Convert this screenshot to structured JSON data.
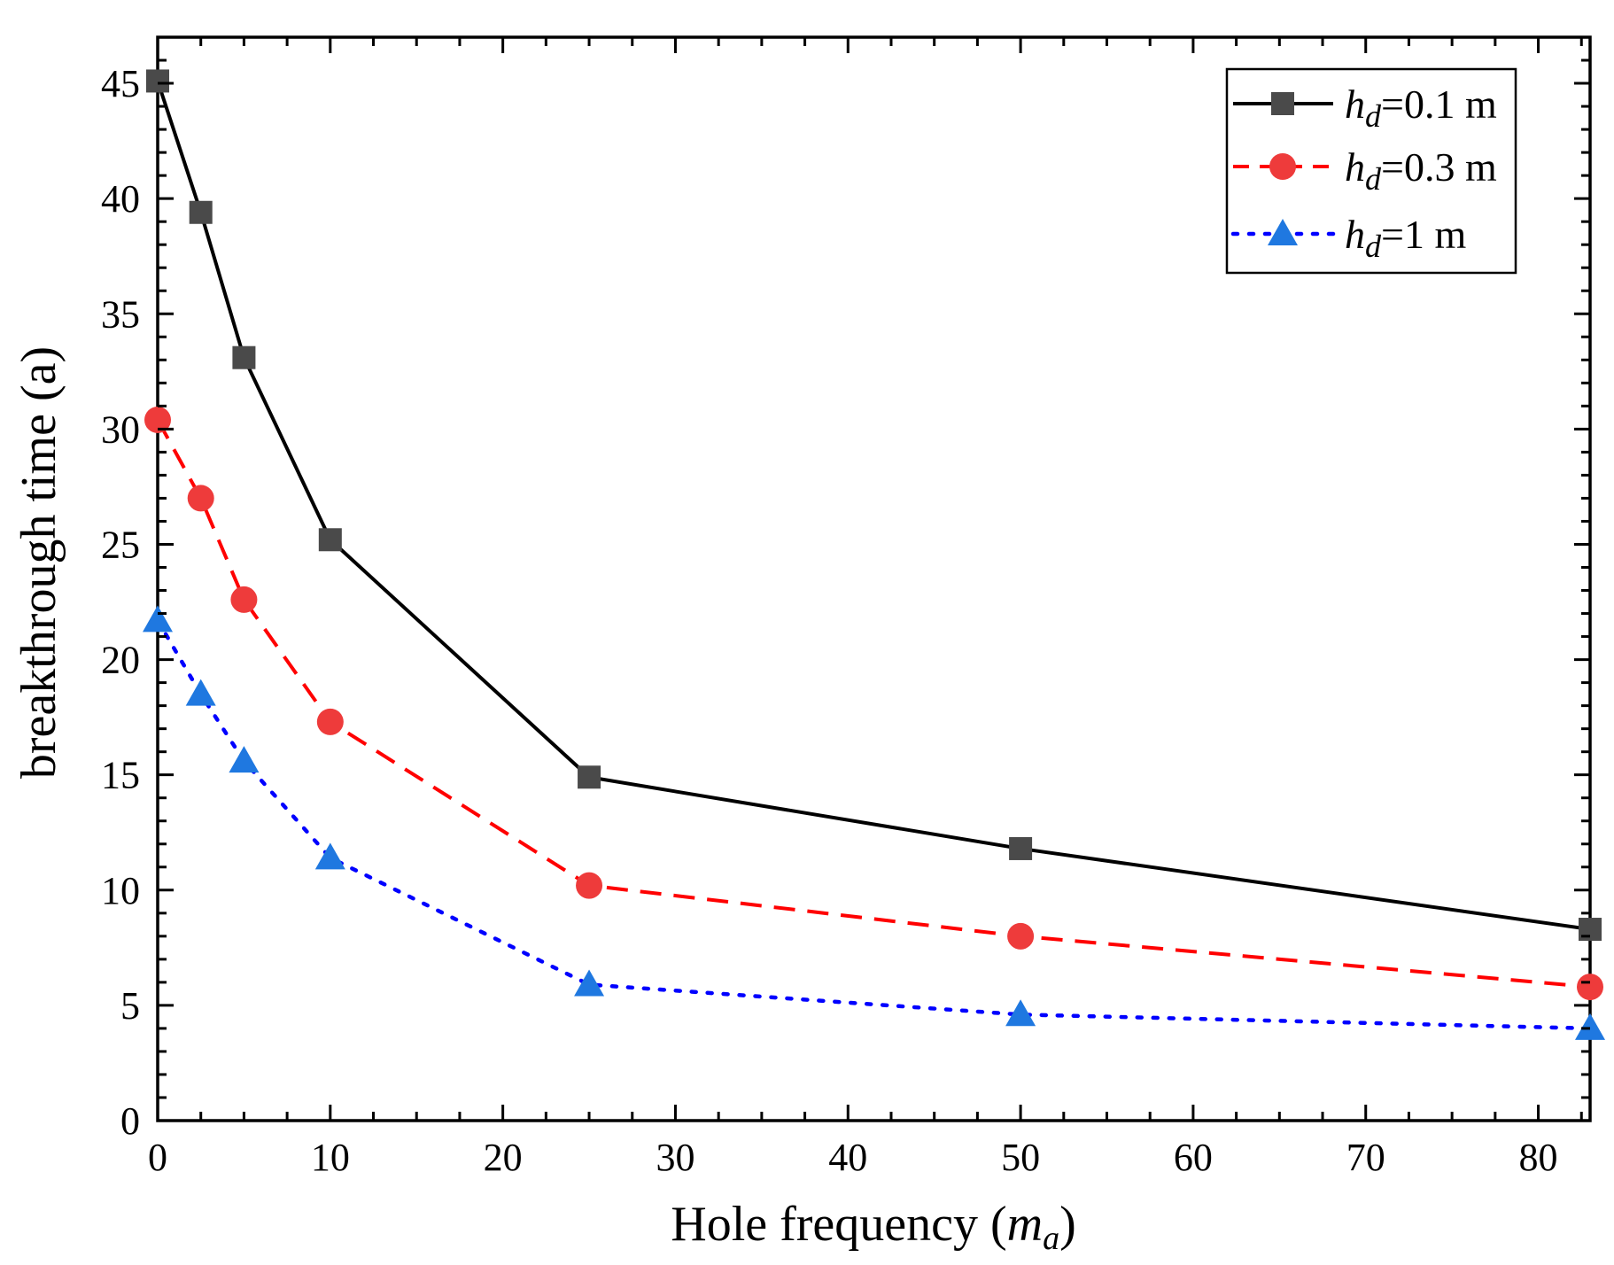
{
  "chart_data": {
    "type": "line",
    "title": "",
    "xlabel": "Hole frequency (m_a)",
    "xlabel_parts": {
      "main": "Hole frequency (",
      "italic": "m",
      "sub": "a",
      "end": ")"
    },
    "ylabel": "breakthrough time (a)",
    "xlim": [
      0,
      83
    ],
    "ylim": [
      0,
      47
    ],
    "xticks": [
      0,
      10,
      20,
      30,
      40,
      50,
      60,
      70,
      80
    ],
    "yticks": [
      0,
      5,
      10,
      15,
      20,
      25,
      30,
      35,
      40,
      45
    ],
    "x": [
      0,
      2.5,
      5,
      10,
      25,
      50,
      83
    ],
    "legend_position": "top-right",
    "grid": false,
    "series": [
      {
        "name": "h_d=0.1 m",
        "label_italic": "h",
        "label_sub": "d",
        "label_rest": "=0.1 m",
        "values": [
          45.1,
          39.4,
          33.1,
          25.2,
          14.9,
          11.8,
          8.3
        ],
        "color": "#000000",
        "marker_color": "#4a4a4a",
        "marker": "square",
        "dash": "none"
      },
      {
        "name": "h_d=0.3 m",
        "label_italic": "h",
        "label_sub": "d",
        "label_rest": "=0.3 m",
        "values": [
          30.4,
          27.0,
          22.6,
          17.3,
          10.2,
          8.0,
          5.8
        ],
        "color": "#ff0000",
        "marker_color": "#ee3b3b",
        "marker": "circle",
        "dash": "dashed"
      },
      {
        "name": "h_d=1 m",
        "label_italic": "h",
        "label_sub": "d",
        "label_rest": "=1 m",
        "values": [
          21.7,
          18.5,
          15.6,
          11.4,
          5.9,
          4.6,
          4.0
        ],
        "color": "#0000ff",
        "marker_color": "#1f78e0",
        "marker": "triangle",
        "dash": "dotted"
      }
    ]
  }
}
